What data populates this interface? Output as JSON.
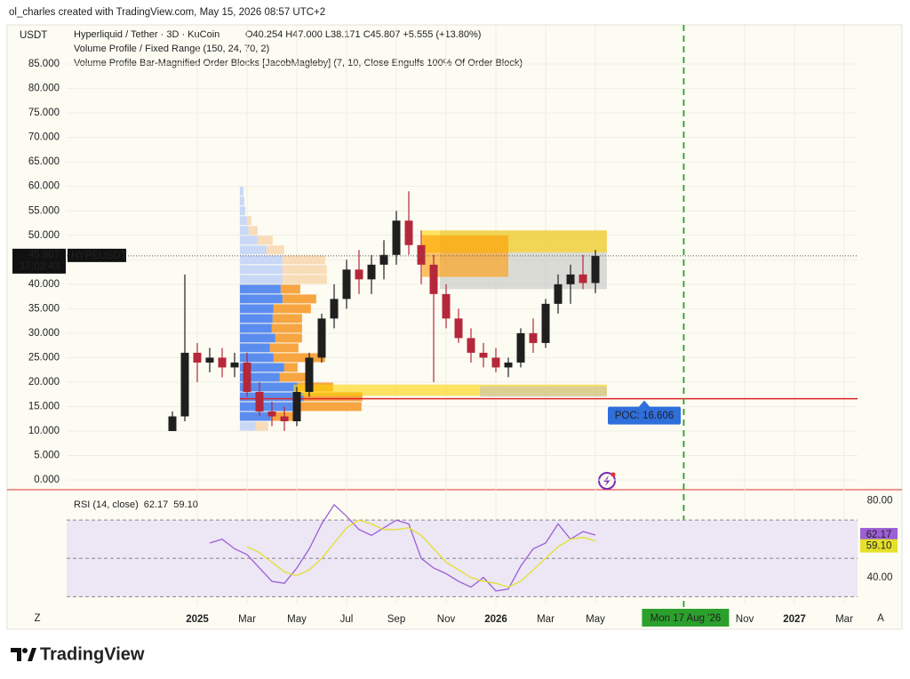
{
  "header": {
    "attribution": "ol_charles created with TradingView.com, May 15, 2026 08:57 UTC+2",
    "quote_currency": "USDT",
    "symbol": "Hyperliquid / Tether · 3D · KuCoin",
    "ohlc": "O40.254 H47.000 L38.171 C45.807 +5.555 (+13.80%)",
    "indicators": [
      "Volume Profile / Fixed Range (150, 24, 70, 2)",
      "Volume Profile Bar-Magnified Order Blocks [JacobMagleby] (7, 10, Close Engulfs 100% Of Order Block)"
    ]
  },
  "chart_data": [
    {
      "type": "candlestick",
      "x": [
        -1,
        -0.5,
        0,
        0.5,
        1,
        1.5,
        2,
        2.5,
        3,
        3.5,
        4,
        4.5,
        5,
        5.5,
        6,
        6.5,
        7,
        7.5,
        8,
        8.5,
        9,
        9.5,
        10,
        10.5,
        11,
        11.5,
        12,
        12.5,
        13,
        13.5,
        14,
        14.5,
        15,
        15.5,
        16
      ],
      "open": [
        10,
        13,
        26,
        24,
        25,
        23,
        24,
        18,
        14,
        13,
        12,
        18,
        25,
        33,
        37,
        43,
        41,
        44,
        46,
        53,
        48,
        44,
        38,
        33,
        29,
        26,
        25,
        23,
        24,
        30,
        28,
        36,
        40,
        42,
        40.254
      ],
      "high": [
        14,
        42,
        28,
        27,
        27,
        26,
        26,
        20,
        16,
        15,
        19,
        26,
        34,
        40,
        45,
        47,
        46,
        49,
        55,
        59,
        51,
        46,
        40,
        35,
        31,
        28,
        27,
        25,
        31,
        33,
        37,
        42,
        44,
        46,
        47
      ],
      "low": [
        10,
        12,
        20,
        22,
        21,
        21,
        17,
        13,
        11,
        10,
        11,
        17,
        24,
        31,
        35,
        38,
        38,
        41,
        44,
        46,
        40,
        20,
        31,
        28,
        24,
        23,
        22,
        21,
        23,
        26,
        27,
        34,
        36,
        39,
        38.171
      ],
      "close": [
        13,
        26,
        24,
        25,
        23,
        24,
        18,
        14,
        13,
        12,
        18,
        25,
        33,
        37,
        43,
        41,
        44,
        46,
        53,
        48,
        44,
        38,
        33,
        29,
        26,
        25,
        23,
        24,
        30,
        28,
        36,
        40,
        42,
        40.25,
        45.807
      ],
      "up_color": "#1f1f1f",
      "down_color": "#b5283b",
      "xlim": [
        -5,
        26.5
      ],
      "ylim": [
        -1.8,
        93
      ],
      "grid": true,
      "yticks": [
        {
          "value": 0,
          "label": "0.000"
        },
        {
          "value": 5,
          "label": "5.000"
        },
        {
          "value": 10,
          "label": "10.000"
        },
        {
          "value": 15,
          "label": "15.000"
        },
        {
          "value": 20,
          "label": "20.000"
        },
        {
          "value": 25,
          "label": "25.000"
        },
        {
          "value": 30,
          "label": "30.000"
        },
        {
          "value": 35,
          "label": "35.000"
        },
        {
          "value": 40,
          "label": "40.000"
        },
        {
          "value": 45,
          "label": "45.000"
        },
        {
          "value": 50,
          "label": "50.000"
        },
        {
          "value": 55,
          "label": "55.000"
        },
        {
          "value": 60,
          "label": "60.000"
        },
        {
          "value": 65,
          "label": "65.000"
        },
        {
          "value": 70,
          "label": "70.000"
        },
        {
          "value": 75,
          "label": "75.000"
        },
        {
          "value": 80,
          "label": "80.000"
        },
        {
          "value": 85,
          "label": "85.000"
        }
      ],
      "xticks": [
        {
          "value": 0,
          "label": "2025"
        },
        {
          "value": 2,
          "label": "Mar"
        },
        {
          "value": 4,
          "label": "May"
        },
        {
          "value": 6,
          "label": "Jul"
        },
        {
          "value": 8,
          "label": "Sep"
        },
        {
          "value": 10,
          "label": "Nov"
        },
        {
          "value": 12,
          "label": "2026"
        },
        {
          "value": 14,
          "label": "Mar"
        },
        {
          "value": 16,
          "label": "May"
        },
        {
          "value": 22,
          "label": "Nov"
        },
        {
          "value": 24,
          "label": "2027"
        },
        {
          "value": 26,
          "label": "Mar"
        }
      ],
      "last_price": {
        "value": 45.807,
        "label": "45.807"
      },
      "countdown": "17:02:43",
      "symbol_tag": "HYPEUSDT",
      "volume_profile": {
        "start_x": 1.71,
        "bins": [
          10,
          12,
          14,
          16,
          18,
          20,
          22,
          24,
          26,
          28,
          30,
          32,
          34,
          36,
          38,
          40,
          42,
          44,
          46,
          48,
          50,
          52,
          54,
          56,
          58,
          60
        ],
        "buy": [
          18,
          35,
          62,
          72,
          65,
          45,
          50,
          38,
          34,
          40,
          36,
          37,
          38,
          48,
          46,
          48,
          48,
          48,
          30,
          20,
          10,
          8,
          6,
          5,
          4
        ],
        "sell": [
          14,
          30,
          75,
          66,
          40,
          30,
          15,
          58,
          32,
          30,
          34,
          33,
          42,
          38,
          22,
          50,
          50,
          48,
          20,
          17,
          10,
          5,
          0,
          0,
          0
        ],
        "value_area": [
          12,
          40
        ],
        "buy_color": "#5b8def",
        "sell_color": "#f7a541",
        "outside_buy_color": "#c9d8f7",
        "outside_sell_color": "#f9dcb8"
      },
      "poc": {
        "value": 16.606,
        "label": "POC: 16.606",
        "color": "#e02424",
        "label_color": "#2f6fdc"
      },
      "order_blocks": [
        {
          "x0": 9.75,
          "x1": 16.46,
          "bottom": 39,
          "top": 51,
          "color": "#bdbdbd88"
        },
        {
          "x0": 9.04,
          "x1": 16.46,
          "bottom": 46.5,
          "top": 51,
          "color": "#ffd20099"
        },
        {
          "x0": 9.04,
          "x1": 12.5,
          "bottom": 41.5,
          "top": 50,
          "color": "#ff9a0099"
        },
        {
          "x0": 3.86,
          "x1": 16.46,
          "bottom": 17.2,
          "top": 19.5,
          "color": "#ffd20099"
        },
        {
          "x0": 11.36,
          "x1": 16.46,
          "bottom": 17,
          "top": 19.2,
          "color": "#bdbdbd88"
        }
      ],
      "marker": {
        "x": 19.55,
        "label": "Mon 17 Aug '26",
        "color": "#2ca02c"
      }
    },
    {
      "type": "line",
      "title": "RSI (14, close)",
      "x": [
        0.5,
        1,
        1.5,
        2,
        2.5,
        3,
        3.5,
        4,
        4.5,
        5,
        5.5,
        6,
        6.5,
        7,
        7.5,
        8,
        8.5,
        9,
        9.5,
        10,
        10.5,
        11,
        11.5,
        12,
        12.5,
        13,
        13.5,
        14,
        14.5,
        15,
        15.5,
        16
      ],
      "series": [
        {
          "color": "#9c5fd6",
          "values": [
            58,
            60,
            55,
            52,
            45,
            38,
            37,
            45,
            55,
            68,
            78,
            72,
            65,
            62,
            66,
            70,
            68,
            50,
            45,
            42,
            38,
            35,
            40,
            33,
            34,
            46,
            55,
            58,
            68,
            60,
            64,
            62.17
          ],
          "last_label": "62.17"
        },
        {
          "color": "#e5e02a",
          "values": [
            null,
            null,
            null,
            56,
            53,
            48,
            43,
            41,
            44,
            50,
            58,
            66,
            70,
            68,
            65,
            65,
            66,
            62,
            55,
            48,
            44,
            40,
            38,
            37,
            35,
            38,
            44,
            50,
            56,
            60,
            61,
            59.1
          ],
          "last_label": "59.10"
        }
      ],
      "ylim": [
        26,
        84
      ],
      "yticks": [
        {
          "value": 80,
          "label": "80.00"
        },
        {
          "value": 40,
          "label": "40.00"
        }
      ],
      "levels": [
        30,
        50,
        70
      ],
      "band_color": "#ece6f5"
    }
  ],
  "footer": {
    "brand": "TradingView",
    "buttons": [
      "Z",
      "A"
    ]
  }
}
